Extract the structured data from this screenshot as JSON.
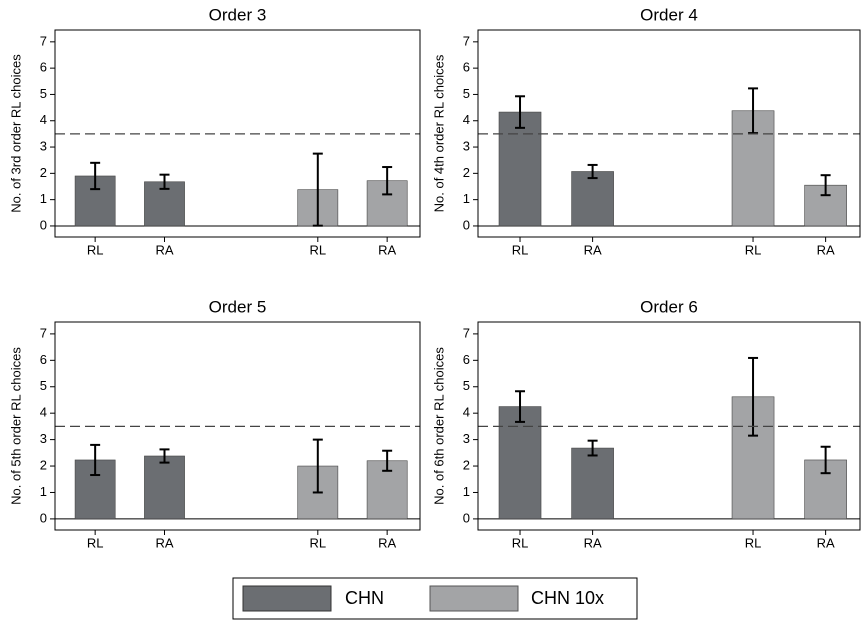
{
  "chart_data": [
    {
      "type": "bar",
      "title": "Order 3",
      "ylabel": "No. of 3rd order RL choices",
      "categories": [
        "RL",
        "RA",
        "RL",
        "RA"
      ],
      "series": [
        {
          "name": "CHN",
          "color": "#6b6e72",
          "values": [
            1.9,
            1.68,
            null,
            null
          ],
          "errors": [
            0.5,
            0.27,
            null,
            null
          ]
        },
        {
          "name": "CHN 10x",
          "color": "#a3a4a6",
          "values": [
            null,
            null,
            1.38,
            1.72
          ],
          "errors": [
            null,
            null,
            1.37,
            0.52
          ]
        }
      ],
      "ylim": [
        -0.42,
        7.45
      ],
      "yticks": [
        0,
        1,
        2,
        3,
        4,
        5,
        6,
        7
      ],
      "hline": 3.5
    },
    {
      "type": "bar",
      "title": "Order 4",
      "ylabel": "No. of 4th order RL choices",
      "categories": [
        "RL",
        "RA",
        "RL",
        "RA"
      ],
      "series": [
        {
          "name": "CHN",
          "color": "#6b6e72",
          "values": [
            4.33,
            2.07,
            null,
            null
          ],
          "errors": [
            0.6,
            0.25,
            null,
            null
          ]
        },
        {
          "name": "CHN 10x",
          "color": "#a3a4a6",
          "values": [
            null,
            null,
            4.38,
            1.55
          ],
          "errors": [
            null,
            null,
            0.85,
            0.38
          ]
        }
      ],
      "ylim": [
        -0.42,
        7.45
      ],
      "yticks": [
        0,
        1,
        2,
        3,
        4,
        5,
        6,
        7
      ],
      "hline": 3.5
    },
    {
      "type": "bar",
      "title": "Order 5",
      "ylabel": "No. of 5th order RL choices",
      "categories": [
        "RL",
        "RA",
        "RL",
        "RA"
      ],
      "series": [
        {
          "name": "CHN",
          "color": "#6b6e72",
          "values": [
            2.23,
            2.38,
            null,
            null
          ],
          "errors": [
            0.57,
            0.25,
            null,
            null
          ]
        },
        {
          "name": "CHN 10x",
          "color": "#a3a4a6",
          "values": [
            null,
            null,
            2.0,
            2.2
          ],
          "errors": [
            null,
            null,
            1.0,
            0.38
          ]
        }
      ],
      "ylim": [
        -0.42,
        7.45
      ],
      "yticks": [
        0,
        1,
        2,
        3,
        4,
        5,
        6,
        7
      ],
      "hline": 3.5
    },
    {
      "type": "bar",
      "title": "Order 6",
      "ylabel": "No. of 6th order RL choices",
      "categories": [
        "RL",
        "RA",
        "RL",
        "RA"
      ],
      "series": [
        {
          "name": "CHN",
          "color": "#6b6e72",
          "values": [
            4.25,
            2.68,
            null,
            null
          ],
          "errors": [
            0.58,
            0.28,
            null,
            null
          ]
        },
        {
          "name": "CHN 10x",
          "color": "#a3a4a6",
          "values": [
            null,
            null,
            4.62,
            2.23
          ],
          "errors": [
            null,
            null,
            1.47,
            0.5
          ]
        }
      ],
      "ylim": [
        -0.42,
        7.45
      ],
      "yticks": [
        0,
        1,
        2,
        3,
        4,
        5,
        6,
        7
      ],
      "hline": 3.5
    }
  ]
}
